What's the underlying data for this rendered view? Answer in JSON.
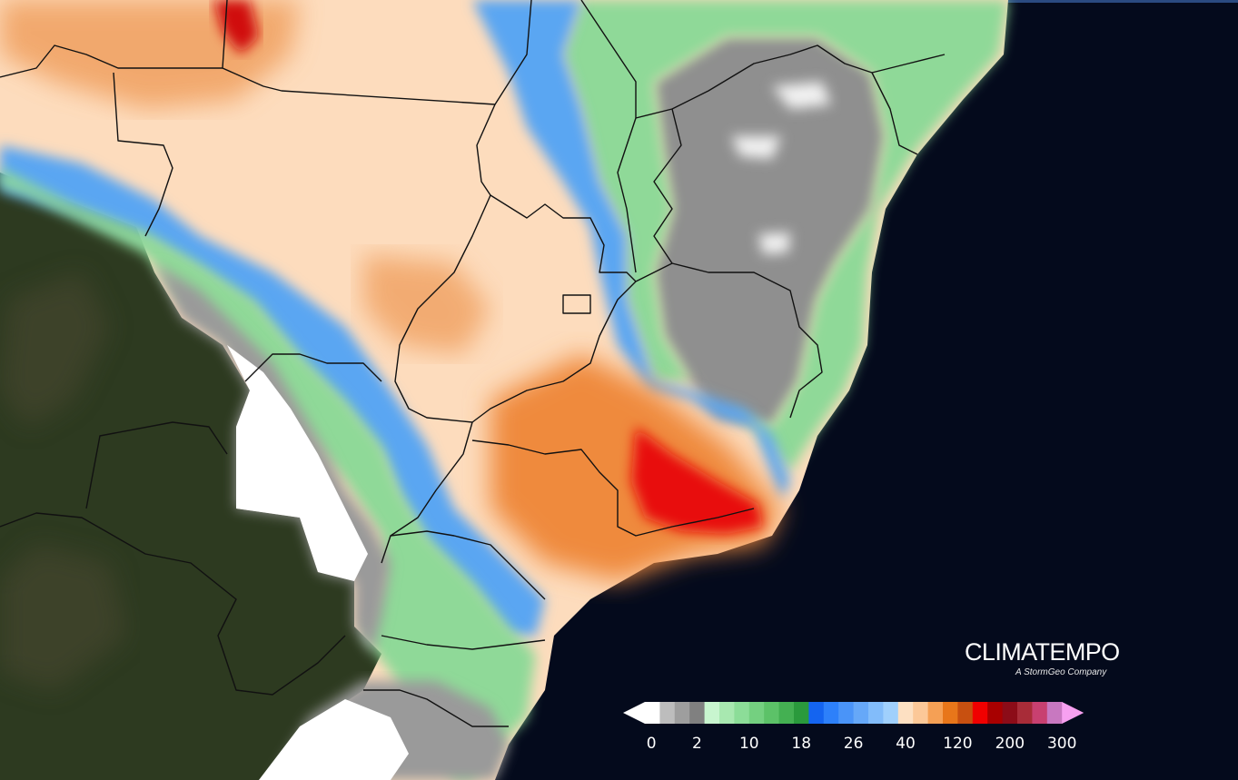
{
  "brand": {
    "name": "CLIMATEMPO",
    "tagline": "A StormGeo Company"
  },
  "legend": {
    "colors": [
      "#ffffff",
      "#bdbdbd",
      "#9e9e9e",
      "#808080",
      "#c8f5cf",
      "#a8e8b0",
      "#8cdd98",
      "#74d080",
      "#5cc268",
      "#44b052",
      "#2a9a3c",
      "#1464f0",
      "#2d80fa",
      "#4a94f8",
      "#66a8f8",
      "#82bcfa",
      "#a0d0fc",
      "#fde0c2",
      "#fcc898",
      "#f5a055",
      "#e8761a",
      "#c85010",
      "#f00000",
      "#a80000",
      "#8c0c18",
      "#a82c38",
      "#c84070",
      "#c878c0",
      "#f7a0f0"
    ],
    "labels": [
      "0",
      "2",
      "10",
      "18",
      "26",
      "40",
      "120",
      "200",
      "300"
    ]
  },
  "map": {
    "colors": {
      "ocean": "#040a1c",
      "land_dark": "#2c3a1e",
      "gray_dry": "#8a8a8a",
      "green": "#8fd998",
      "blue": "#5aa6f2",
      "peach": "#fddcbd",
      "orange": "#f0a060",
      "red": "#e81010",
      "boundary": "#111111"
    }
  }
}
